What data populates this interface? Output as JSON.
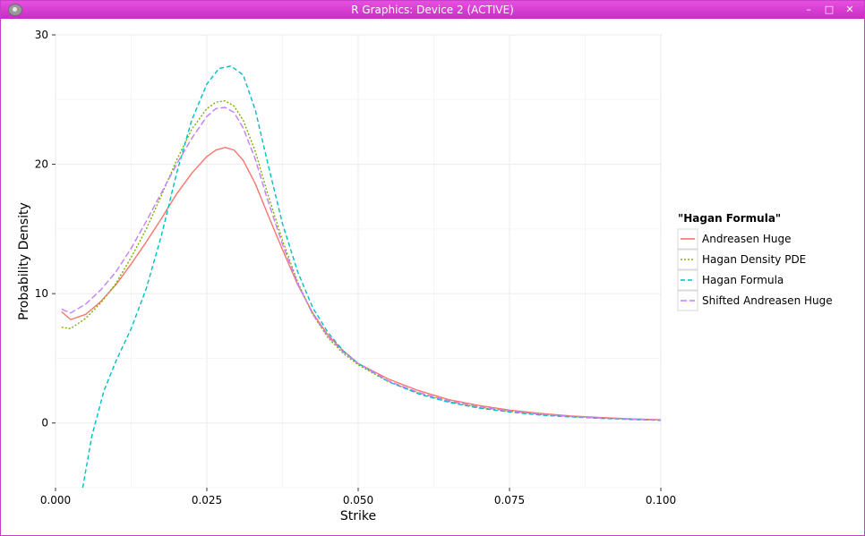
{
  "window": {
    "title": "R Graphics: Device 2 (ACTIVE)",
    "minimize_glyph": "–",
    "maximize_glyph": "□",
    "close_glyph": "✕",
    "app_icon": "r-graphics-icon"
  },
  "chart_data": {
    "type": "line",
    "title": "",
    "xlabel": "Strike",
    "ylabel": "Probability Density",
    "xlim": [
      0,
      0.1
    ],
    "ylim": [
      -5,
      30
    ],
    "x_ticks": [
      0,
      0.025,
      0.05,
      0.075,
      0.1
    ],
    "x_tick_labels": [
      "0.000",
      "0.025",
      "0.050",
      "0.075",
      "0.100"
    ],
    "y_ticks": [
      0,
      10,
      20,
      30
    ],
    "y_tick_labels": [
      "0",
      "10",
      "20",
      "30"
    ],
    "grid": true,
    "legend": {
      "title": "\"Hagan Formula\"",
      "position": "right"
    },
    "series": [
      {
        "name": "Andreasen Huge",
        "color": "#f8766d",
        "dash": "solid",
        "x": [
          0.001,
          0.0025,
          0.005,
          0.0075,
          0.01,
          0.0125,
          0.015,
          0.0175,
          0.02,
          0.0225,
          0.025,
          0.0265,
          0.028,
          0.0295,
          0.031,
          0.033,
          0.035,
          0.0375,
          0.04,
          0.0425,
          0.045,
          0.0475,
          0.05,
          0.055,
          0.06,
          0.065,
          0.07,
          0.075,
          0.08,
          0.085,
          0.09,
          0.095,
          0.1
        ],
        "y": [
          8.6,
          8.0,
          8.4,
          9.4,
          10.7,
          12.3,
          14.0,
          15.8,
          17.7,
          19.3,
          20.6,
          21.1,
          21.3,
          21.1,
          20.3,
          18.5,
          16.2,
          13.4,
          10.7,
          8.5,
          6.8,
          5.6,
          4.6,
          3.4,
          2.5,
          1.8,
          1.35,
          1.0,
          0.75,
          0.55,
          0.42,
          0.32,
          0.25
        ]
      },
      {
        "name": "Hagan Density PDE",
        "color": "#7cae00",
        "dash": "dotted",
        "x": [
          0.001,
          0.0025,
          0.005,
          0.0075,
          0.01,
          0.0125,
          0.015,
          0.0175,
          0.02,
          0.0225,
          0.025,
          0.0265,
          0.028,
          0.0295,
          0.031,
          0.033,
          0.035,
          0.0375,
          0.04,
          0.0425,
          0.045,
          0.0475,
          0.05,
          0.055,
          0.06,
          0.065,
          0.07,
          0.075,
          0.08,
          0.085,
          0.09,
          0.095,
          0.1
        ],
        "y": [
          7.4,
          7.3,
          8.1,
          9.3,
          10.8,
          12.8,
          15.0,
          17.6,
          20.3,
          22.7,
          24.3,
          24.8,
          24.9,
          24.5,
          23.4,
          21.0,
          17.8,
          14.1,
          10.9,
          8.4,
          6.6,
          5.4,
          4.5,
          3.2,
          2.3,
          1.65,
          1.2,
          0.9,
          0.66,
          0.5,
          0.38,
          0.29,
          0.22
        ]
      },
      {
        "name": "Hagan Formula",
        "color": "#00bfc4",
        "dash": "dashed",
        "x": [
          0.0045,
          0.006,
          0.008,
          0.01,
          0.0125,
          0.015,
          0.0175,
          0.02,
          0.0225,
          0.025,
          0.027,
          0.029,
          0.031,
          0.033,
          0.035,
          0.0375,
          0.04,
          0.0425,
          0.045,
          0.0475,
          0.05,
          0.055,
          0.06,
          0.065,
          0.07,
          0.075,
          0.08,
          0.085,
          0.09,
          0.095,
          0.1
        ],
        "y": [
          -5.0,
          -1.0,
          2.5,
          4.8,
          7.3,
          10.4,
          14.5,
          19.3,
          23.4,
          26.2,
          27.4,
          27.6,
          26.9,
          24.2,
          20.2,
          15.4,
          11.7,
          8.9,
          7.0,
          5.6,
          4.6,
          3.2,
          2.25,
          1.6,
          1.15,
          0.85,
          0.62,
          0.47,
          0.36,
          0.27,
          0.2
        ]
      },
      {
        "name": "Shifted Andreasen Huge",
        "color": "#c77cff",
        "dash": "longdash",
        "x": [
          0.001,
          0.0025,
          0.005,
          0.0075,
          0.01,
          0.0125,
          0.015,
          0.0175,
          0.02,
          0.0225,
          0.025,
          0.0265,
          0.028,
          0.0295,
          0.031,
          0.033,
          0.035,
          0.0375,
          0.04,
          0.0425,
          0.045,
          0.0475,
          0.05,
          0.055,
          0.06,
          0.065,
          0.07,
          0.075,
          0.08,
          0.085,
          0.09,
          0.095,
          0.1
        ],
        "y": [
          8.8,
          8.5,
          9.2,
          10.3,
          11.7,
          13.5,
          15.6,
          17.8,
          20.0,
          22.0,
          23.7,
          24.3,
          24.4,
          24.0,
          22.8,
          20.4,
          17.3,
          13.8,
          10.8,
          8.4,
          6.7,
          5.5,
          4.6,
          3.25,
          2.35,
          1.7,
          1.25,
          0.93,
          0.69,
          0.52,
          0.39,
          0.3,
          0.23
        ]
      }
    ]
  }
}
